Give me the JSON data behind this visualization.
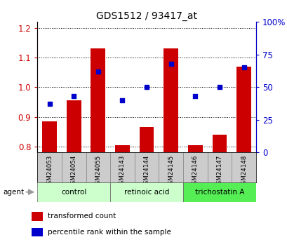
{
  "title": "GDS1512 / 93417_at",
  "samples": [
    "GSM24053",
    "GSM24054",
    "GSM24055",
    "GSM24143",
    "GSM24144",
    "GSM24145",
    "GSM24146",
    "GSM24147",
    "GSM24148"
  ],
  "transformed_count": [
    0.885,
    0.955,
    1.13,
    0.805,
    0.865,
    1.13,
    0.805,
    0.84,
    1.07
  ],
  "percentile_rank": [
    37,
    43,
    62,
    40,
    50,
    68,
    43,
    50,
    65
  ],
  "ylim_left": [
    0.78,
    1.22
  ],
  "ylim_right": [
    0,
    100
  ],
  "yticks_left": [
    0.8,
    0.9,
    1.0,
    1.1,
    1.2
  ],
  "yticks_right": [
    0,
    25,
    50,
    75,
    100
  ],
  "groups": [
    {
      "label": "control",
      "indices": [
        0,
        1,
        2
      ],
      "color": "#ccffcc"
    },
    {
      "label": "retinoic acid",
      "indices": [
        3,
        4,
        5
      ],
      "color": "#ccffcc"
    },
    {
      "label": "trichostatin A",
      "indices": [
        6,
        7,
        8
      ],
      "color": "#55ee55"
    }
  ],
  "bar_color": "#cc0000",
  "dot_color": "#0000cc",
  "bar_width": 0.6,
  "bg_color": "#ffffff",
  "left_tick_color": "#cc0000",
  "right_tick_color": "#0000cc",
  "sample_box_color": "#cccccc",
  "agent_label": "agent",
  "legend_items": [
    {
      "label": "transformed count",
      "color": "#cc0000"
    },
    {
      "label": "percentile rank within the sample",
      "color": "#0000cc"
    }
  ]
}
